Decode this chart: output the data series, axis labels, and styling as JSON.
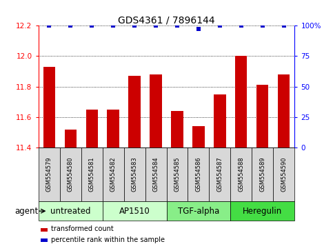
{
  "title": "GDS4361 / 7896144",
  "samples": [
    "GSM554579",
    "GSM554580",
    "GSM554581",
    "GSM554582",
    "GSM554583",
    "GSM554584",
    "GSM554585",
    "GSM554586",
    "GSM554587",
    "GSM554588",
    "GSM554589",
    "GSM554590"
  ],
  "bar_values": [
    11.93,
    11.52,
    11.65,
    11.65,
    11.87,
    11.88,
    11.64,
    11.54,
    11.75,
    12.0,
    11.81,
    11.88
  ],
  "percentile_values": [
    100,
    100,
    100,
    100,
    100,
    100,
    100,
    97,
    100,
    100,
    100,
    100
  ],
  "bar_color": "#cc0000",
  "percentile_color": "#0000cc",
  "ylim_left": [
    11.4,
    12.2
  ],
  "ylim_right": [
    0,
    100
  ],
  "yticks_left": [
    11.4,
    11.6,
    11.8,
    12.0,
    12.2
  ],
  "yticks_right": [
    0,
    25,
    50,
    75,
    100
  ],
  "ytick_labels_right": [
    "0",
    "25",
    "50",
    "75",
    "100%"
  ],
  "grid_values": [
    11.6,
    11.8,
    12.0
  ],
  "agents": [
    {
      "label": "untreated",
      "start": 0,
      "end": 3,
      "color": "#ccffcc"
    },
    {
      "label": "AP1510",
      "start": 3,
      "end": 6,
      "color": "#ccffcc"
    },
    {
      "label": "TGF-alpha",
      "start": 6,
      "end": 9,
      "color": "#88ee88"
    },
    {
      "label": "Heregulin",
      "start": 9,
      "end": 12,
      "color": "#44dd44"
    }
  ],
  "sample_box_color": "#d8d8d8",
  "bg_color": "#ffffff",
  "bar_width": 0.55,
  "legend_bar_label": "transformed count",
  "legend_pct_label": "percentile rank within the sample",
  "agent_row_label": "agent",
  "title_fontsize": 10,
  "tick_fontsize": 7.5,
  "sample_fontsize": 6.0,
  "agent_fontsize": 8.5
}
